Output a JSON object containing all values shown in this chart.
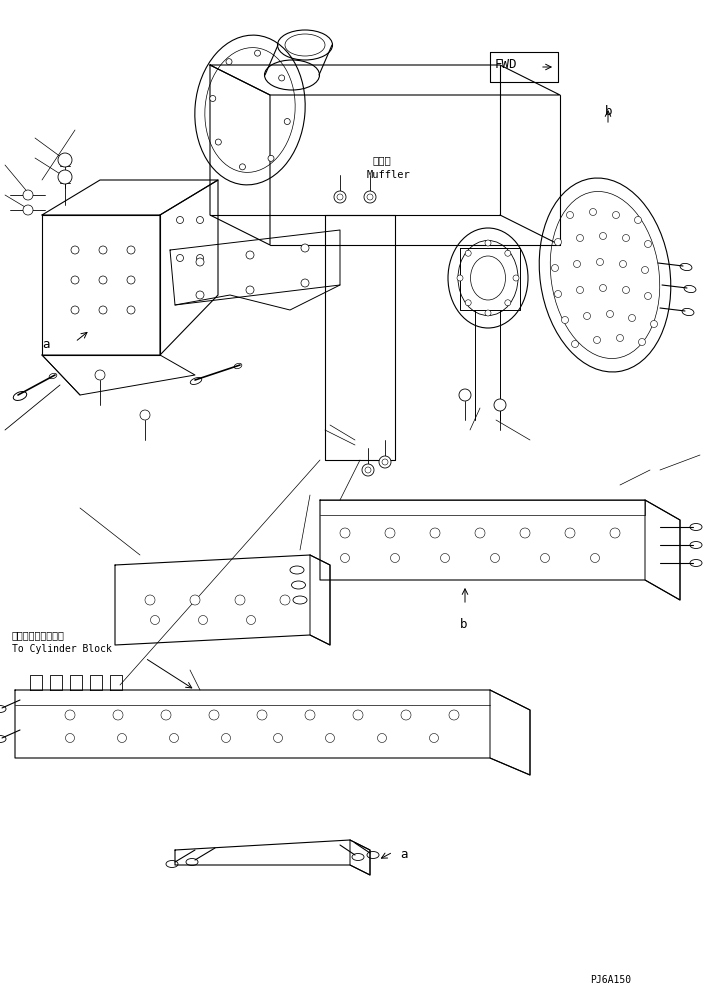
{
  "background_color": "#ffffff",
  "line_color": "#000000",
  "label_muffler_jp": "マフラ",
  "label_muffler_en": "Muffler",
  "label_cylinder_jp": "シリンダブロックへ",
  "label_cylinder_en": "To Cylinder Block",
  "label_fwd": "FWD",
  "label_a": "a",
  "label_b": "b",
  "part_code": "PJ6A150",
  "fig_width": 7.22,
  "fig_height": 9.9,
  "dpi": 100
}
